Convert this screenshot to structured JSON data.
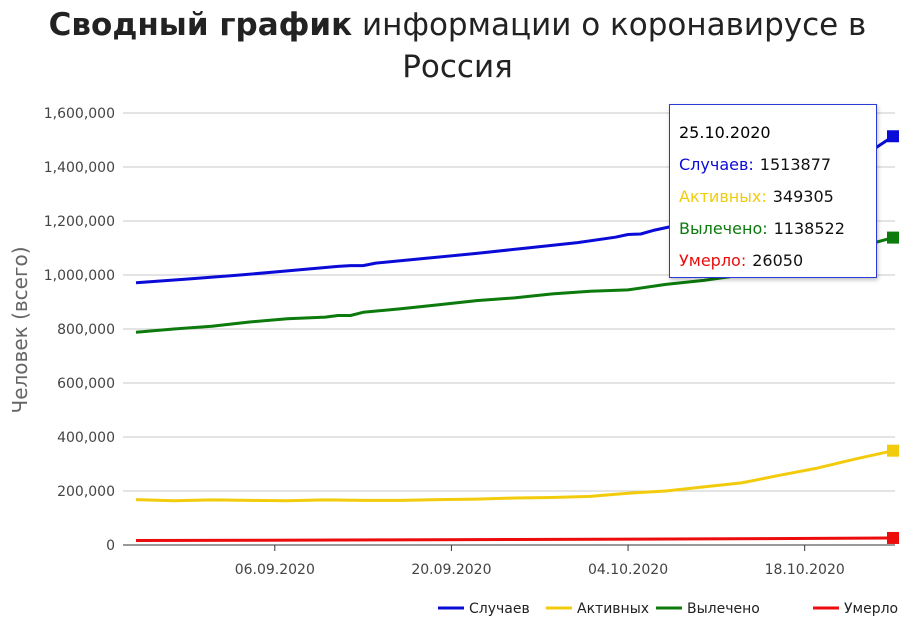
{
  "title": {
    "bold": "Сводный график",
    "regular": "информации о коронавирусе в Россия"
  },
  "chart_data": {
    "type": "line",
    "ylabel": "Человек (всего)",
    "xlabel": "",
    "ylim": [
      0,
      1600000
    ],
    "yticks": [
      0,
      200000,
      400000,
      600000,
      800000,
      1000000,
      1200000,
      1400000,
      1600000
    ],
    "ytick_labels": [
      "0",
      "200,000",
      "400,000",
      "600,000",
      "800,000",
      "1,000,000",
      "1,200,000",
      "1,400,000",
      "1,600,000"
    ],
    "x_start": "2020-08-26",
    "x_end": "2020-10-25",
    "xticks": [
      "2020-09-06",
      "2020-09-20",
      "2020-10-04",
      "2020-10-18"
    ],
    "xtick_labels": [
      "06.09.2020",
      "20.09.2020",
      "04.10.2020",
      "18.10.2020"
    ],
    "grid": true,
    "legend": "bottom-right",
    "series": [
      {
        "name": "Случаев",
        "color": "#0b0bd8",
        "points": [
          [
            "2020-08-26",
            971000
          ],
          [
            "2020-08-30",
            985000
          ],
          [
            "2020-09-03",
            999000
          ],
          [
            "2020-09-07",
            1015000
          ],
          [
            "2020-09-11",
            1032000
          ],
          [
            "2020-09-12",
            1035000
          ],
          [
            "2020-09-13",
            1035000
          ],
          [
            "2020-09-14",
            1044000
          ],
          [
            "2020-09-18",
            1062000
          ],
          [
            "2020-09-22",
            1080000
          ],
          [
            "2020-09-26",
            1100000
          ],
          [
            "2020-09-30",
            1120000
          ],
          [
            "2020-10-03",
            1140000
          ],
          [
            "2020-10-04",
            1150000
          ],
          [
            "2020-10-05",
            1152000
          ],
          [
            "2020-10-06",
            1165000
          ],
          [
            "2020-10-10",
            1205000
          ],
          [
            "2020-10-14",
            1260000
          ],
          [
            "2020-10-18",
            1330000
          ],
          [
            "2020-10-22",
            1420000
          ],
          [
            "2020-10-25",
            1513877
          ]
        ]
      },
      {
        "name": "Активных",
        "color": "#f2cc0c",
        "points": [
          [
            "2020-08-26",
            168000
          ],
          [
            "2020-08-29",
            164000
          ],
          [
            "2020-09-01",
            167000
          ],
          [
            "2020-09-04",
            165000
          ],
          [
            "2020-09-07",
            164000
          ],
          [
            "2020-09-10",
            167000
          ],
          [
            "2020-09-13",
            165000
          ],
          [
            "2020-09-16",
            165000
          ],
          [
            "2020-09-19",
            168000
          ],
          [
            "2020-09-22",
            170000
          ],
          [
            "2020-09-25",
            174000
          ],
          [
            "2020-09-28",
            176000
          ],
          [
            "2020-10-01",
            180000
          ],
          [
            "2020-10-04",
            192000
          ],
          [
            "2020-10-07",
            200000
          ],
          [
            "2020-10-10",
            215000
          ],
          [
            "2020-10-13",
            230000
          ],
          [
            "2020-10-16",
            258000
          ],
          [
            "2020-10-19",
            285000
          ],
          [
            "2020-10-22",
            318000
          ],
          [
            "2020-10-25",
            349305
          ]
        ]
      },
      {
        "name": "Вылечено",
        "color": "#0c7a0c",
        "points": [
          [
            "2020-08-26",
            788000
          ],
          [
            "2020-08-29",
            800000
          ],
          [
            "2020-09-01",
            810000
          ],
          [
            "2020-09-04",
            826000
          ],
          [
            "2020-09-07",
            838000
          ],
          [
            "2020-09-10",
            844000
          ],
          [
            "2020-09-11",
            850000
          ],
          [
            "2020-09-12",
            850000
          ],
          [
            "2020-09-13",
            862000
          ],
          [
            "2020-09-16",
            875000
          ],
          [
            "2020-09-19",
            890000
          ],
          [
            "2020-09-22",
            905000
          ],
          [
            "2020-09-25",
            915000
          ],
          [
            "2020-09-28",
            930000
          ],
          [
            "2020-10-01",
            940000
          ],
          [
            "2020-10-04",
            945000
          ],
          [
            "2020-10-07",
            965000
          ],
          [
            "2020-10-10",
            980000
          ],
          [
            "2020-10-13",
            1000000
          ],
          [
            "2020-10-16",
            1030000
          ],
          [
            "2020-10-19",
            1060000
          ],
          [
            "2020-10-22",
            1100000
          ],
          [
            "2020-10-25",
            1138522
          ]
        ]
      },
      {
        "name": "Умерло",
        "color": "#ec0c0c",
        "points": [
          [
            "2020-08-26",
            16800
          ],
          [
            "2020-09-05",
            17900
          ],
          [
            "2020-09-15",
            19000
          ],
          [
            "2020-09-25",
            20300
          ],
          [
            "2020-10-05",
            21900
          ],
          [
            "2020-10-15",
            23700
          ],
          [
            "2020-10-25",
            26050
          ]
        ]
      }
    ]
  },
  "tooltip": {
    "date": "25.10.2020",
    "rows": [
      {
        "label": "Случаев:",
        "value": "1513877",
        "color": "#0b0bd8"
      },
      {
        "label": "Активных:",
        "value": "349305",
        "color": "#f2cc0c"
      },
      {
        "label": "Вылечено:",
        "value": "1138522",
        "color": "#0c7a0c"
      },
      {
        "label": "Умерло:",
        "value": "26050",
        "color": "#ec0c0c"
      }
    ],
    "border_color": "#2b3bd6"
  }
}
